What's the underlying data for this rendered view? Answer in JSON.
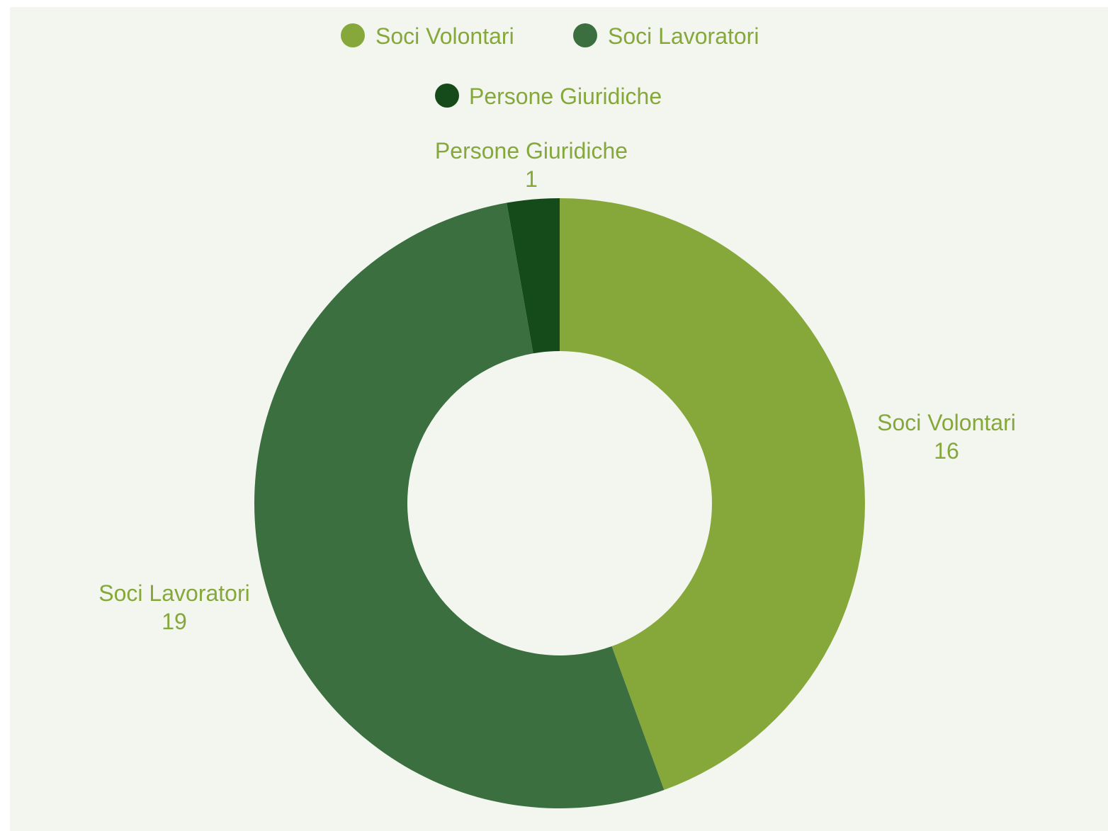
{
  "chart_data": {
    "type": "pie",
    "donut": true,
    "categories": [
      "Soci Volontari",
      "Soci Lavoratori",
      "Persone Giuridiche"
    ],
    "values": [
      16,
      19,
      1
    ],
    "colors": [
      "#86a83b",
      "#3b6f3f",
      "#154a1b"
    ],
    "value_labels": [
      "16",
      "19",
      "1"
    ],
    "legend": {
      "placement": "top",
      "entries": [
        "Soci Volontari",
        "Soci Lavoratori",
        "Persone Giuridiche"
      ]
    },
    "label_color": "#86a83b",
    "background": "#f2f6ef"
  }
}
